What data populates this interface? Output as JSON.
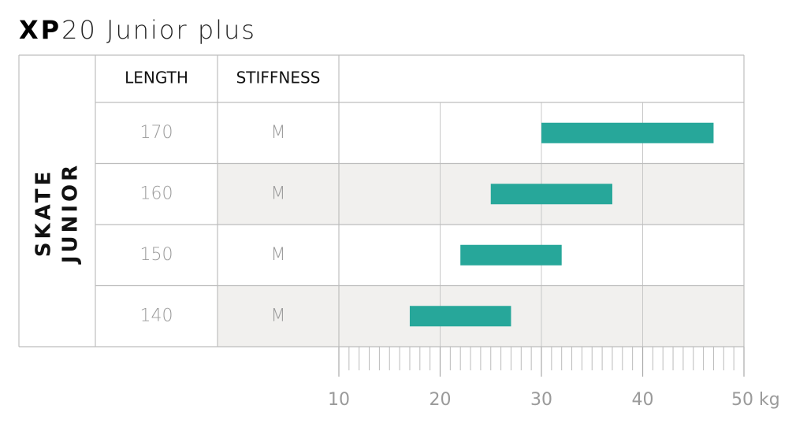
{
  "chart_data": {
    "type": "range-bar",
    "title_bold": "XP",
    "title": "20 Junior plus",
    "row_group": [
      "SKATE",
      "JUNIOR"
    ],
    "columns": [
      "LENGTH",
      "STIFFNESS"
    ],
    "categories": [
      "170",
      "160",
      "150",
      "140"
    ],
    "stiffness": [
      "M",
      "M",
      "M",
      "M"
    ],
    "low": [
      30,
      25,
      22,
      17
    ],
    "high": [
      47,
      37,
      32,
      27
    ],
    "color": "#27a79a",
    "xlim": [
      10,
      50
    ],
    "xticks": [
      10,
      20,
      30,
      40,
      {
        "value": 50,
        "label": "50 kg"
      }
    ],
    "xminorticks": [
      11,
      12,
      13,
      14,
      15,
      16,
      17,
      18,
      19,
      21,
      22,
      23,
      24,
      25,
      26,
      27,
      28,
      29,
      31,
      32,
      33,
      34,
      35,
      36,
      37,
      38,
      39,
      41,
      42,
      43,
      44,
      45,
      46,
      47,
      48,
      49
    ],
    "grid": true
  }
}
